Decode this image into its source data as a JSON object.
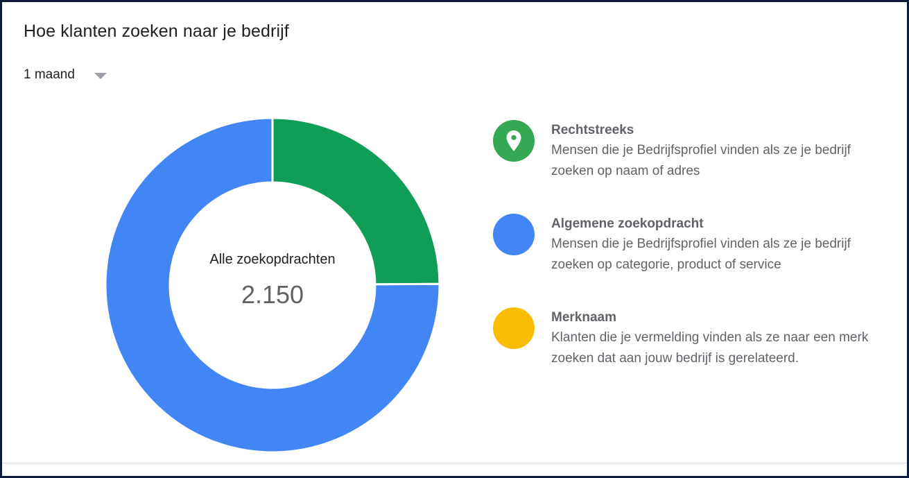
{
  "card": {
    "title": "Hoe klanten zoeken naar je bedrijf",
    "period_select": {
      "selected": "1 maand"
    }
  },
  "chart_data": {
    "type": "pie",
    "variant": "donut",
    "center_label": "Alle zoekopdrachten",
    "center_value": "2.150",
    "total": 2150,
    "slices": [
      {
        "name": "Rechtstreeks",
        "value": 535,
        "color": "#0f9d58"
      },
      {
        "name": "Algemene zoekopdracht",
        "value": 1615,
        "color": "#4285f4"
      },
      {
        "name": "Merknaam",
        "value": 0,
        "color": "#fbbc04"
      }
    ]
  },
  "legend": {
    "items": [
      {
        "title": "Rechtstreeks",
        "desc": "Mensen die je Bedrijfsprofiel vinden als ze je bedrijf zoeken op naam of adres",
        "color": "#34a853",
        "icon": "map-pin-icon"
      },
      {
        "title": "Algemene zoekopdracht",
        "desc": "Mensen die je Bedrijfsprofiel vinden als ze je bedrijf zoeken op categorie, product of service",
        "color": "#4285f4",
        "icon": ""
      },
      {
        "title": "Merknaam",
        "desc": "Klanten die je vermelding vinden als ze naar een merk zoeken dat aan jouw bedrijf is gerelateerd.",
        "color": "#fbbc04",
        "icon": ""
      }
    ]
  }
}
